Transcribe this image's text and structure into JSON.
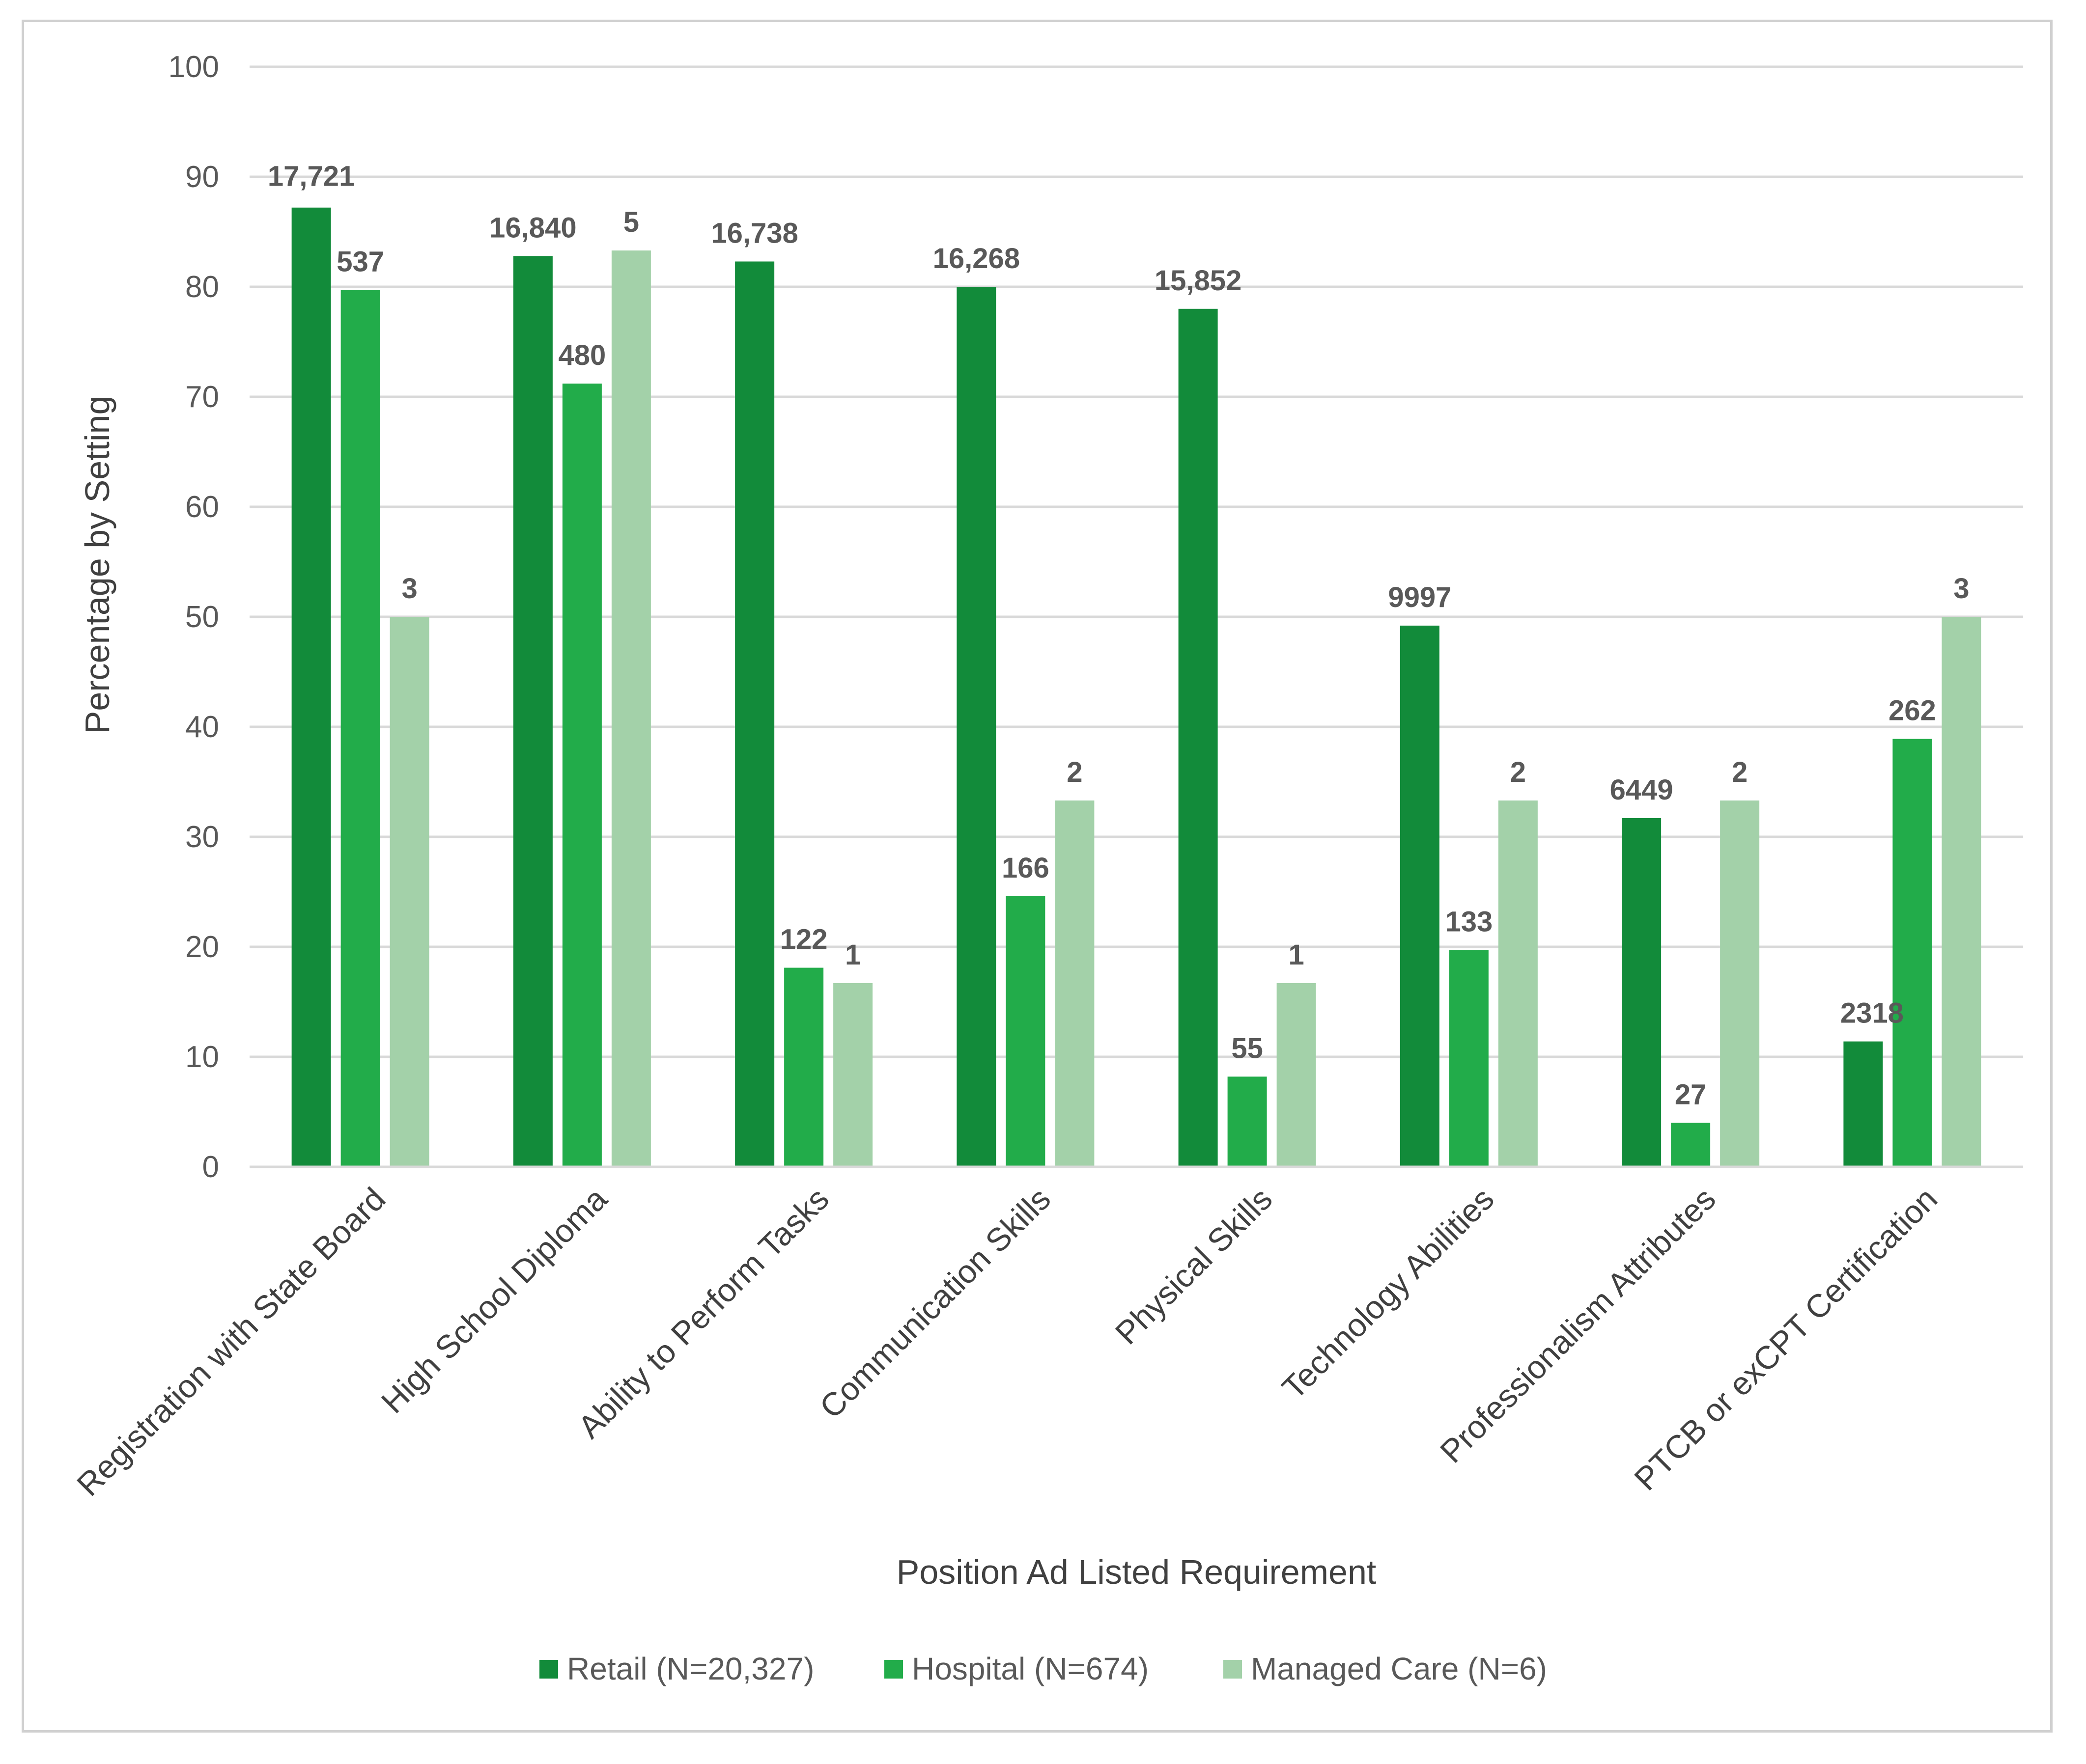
{
  "chart_data": {
    "type": "bar",
    "title": "",
    "xlabel": "Position Ad Listed Requirement",
    "ylabel": "Percentage by Setting",
    "ylim": [
      0,
      100
    ],
    "yticks": [
      "0",
      "10",
      "20",
      "30",
      "40",
      "50",
      "60",
      "70",
      "80",
      "90",
      "100"
    ],
    "grid": true,
    "legend_position": "bottom",
    "categories": [
      "Registration with State Board",
      "High School Diploma",
      "Ability to Perform Tasks",
      "Communication Skills",
      "Physical Skills",
      "Technology Abilities",
      "Professionalism Attributes",
      "PTCB or exCPT Certification"
    ],
    "series": [
      {
        "name": "Retail (N=20,327)",
        "color": "#128b3a",
        "values": [
          87.2,
          82.8,
          82.3,
          80.0,
          78.0,
          49.2,
          31.7,
          11.4
        ],
        "labels": [
          "17,721",
          "16,840",
          "16,738",
          "16,268",
          "15,852",
          "9997",
          "6449",
          "2318"
        ]
      },
      {
        "name": "Hospital (N=674)",
        "color": "#22ac4a",
        "values": [
          79.7,
          71.2,
          18.1,
          24.6,
          8.2,
          19.7,
          4.0,
          38.9
        ],
        "labels": [
          "537",
          "480",
          "122",
          "166",
          "55",
          "133",
          "27",
          "262"
        ]
      },
      {
        "name": "Managed Care (N=6)",
        "color": "#a3d1a9",
        "values": [
          50.0,
          83.3,
          16.7,
          33.3,
          16.7,
          33.3,
          33.3,
          50.0
        ],
        "labels": [
          "3",
          "5",
          "1",
          "2",
          "1",
          "2",
          "2",
          "3"
        ]
      }
    ]
  }
}
